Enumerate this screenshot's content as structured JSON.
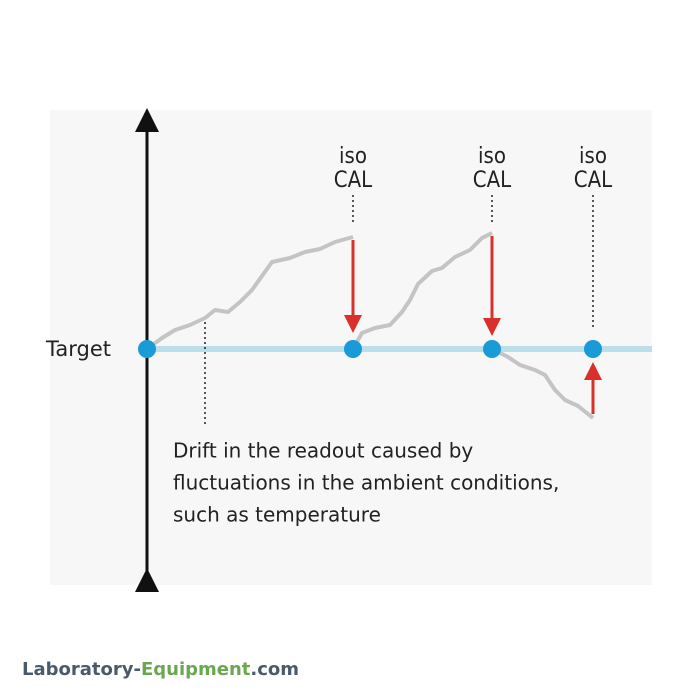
{
  "diagram": {
    "axis_label": "Target",
    "calibrations": [
      {
        "line1": "iso",
        "line2": "CAL"
      },
      {
        "line1": "iso",
        "line2": "CAL"
      },
      {
        "line1": "iso",
        "line2": "CAL"
      }
    ],
    "annotation": {
      "lines": [
        "Drift in the readout caused by",
        "fluctuations in the ambient conditions,",
        "such as temperature"
      ]
    }
  },
  "watermark": {
    "parts": [
      "Laboratory-",
      "Equipment",
      ".com"
    ]
  }
}
